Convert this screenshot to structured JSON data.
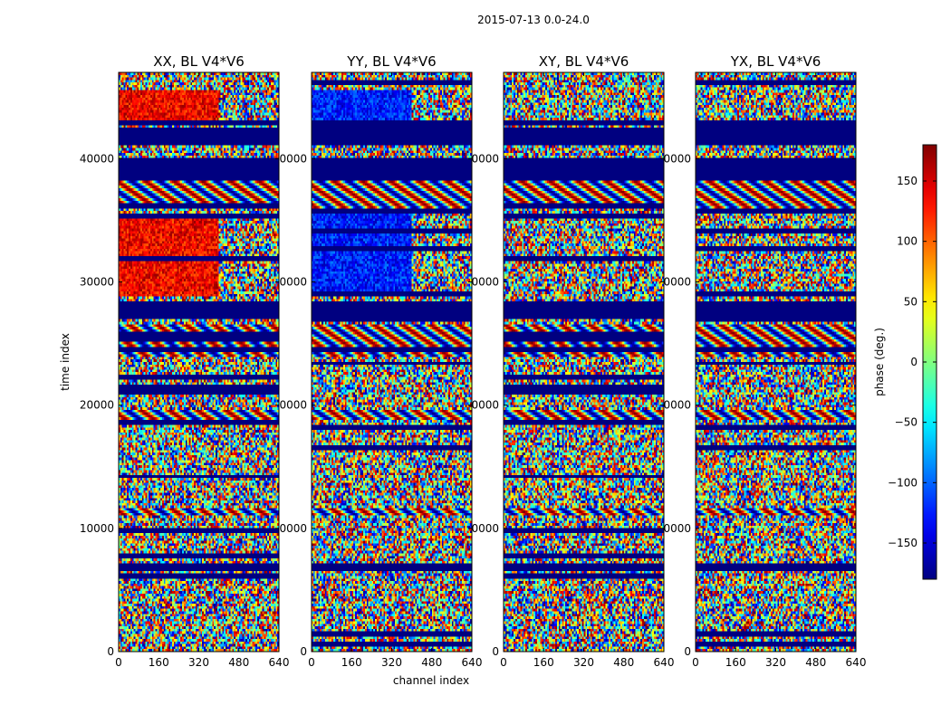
{
  "figure_title": "2015-07-13 0.0-24.0",
  "chart_data": {
    "type": "heatmap",
    "title": "2015-07-13 0.0-24.0",
    "xlabel": "channel index",
    "ylabel": "time index",
    "xlim": [
      0,
      640
    ],
    "ylim": [
      0,
      47000
    ],
    "x_ticks": [
      0,
      160,
      320,
      480,
      640
    ],
    "y_ticks": [
      0,
      10000,
      20000,
      30000,
      40000
    ],
    "x_tick_labels": [
      "0",
      "160",
      "320",
      "480",
      "640"
    ],
    "y_tick_labels": [
      "0",
      "10000",
      "20000",
      "30000",
      "40000"
    ],
    "y_tick_labels_clipped": [
      "0",
      "0000",
      "0000",
      "0000",
      "0000"
    ],
    "colorbar": {
      "label": "phase (deg.)",
      "range": [
        -180,
        180
      ],
      "ticks": [
        -150,
        -100,
        -50,
        0,
        50,
        100,
        150
      ],
      "tick_labels": [
        "−150",
        "−100",
        "−50",
        "0",
        "50",
        "100",
        "150"
      ],
      "colormap": "jet"
    },
    "panels": [
      {
        "name": "XX",
        "title": "XX, BL V4*V6",
        "hot_block": "red",
        "show_ylabel": true
      },
      {
        "name": "YY",
        "title": "YY, BL V4*V6",
        "hot_block": "blue",
        "show_ylabel": false
      },
      {
        "name": "XY",
        "title": "XY, BL V4*V6",
        "hot_block": "none",
        "show_ylabel": false
      },
      {
        "name": "YX",
        "title": "YX, BL V4*V6",
        "hot_block": "none",
        "show_ylabel": false
      }
    ],
    "flagged_time_ranges": [
      [
        6600,
        7200
      ],
      [
        27000,
        28500
      ],
      [
        38300,
        40000
      ],
      [
        41000,
        42500
      ]
    ],
    "structured_time_ranges": [
      [
        11000,
        11600
      ],
      [
        18800,
        19600
      ],
      [
        24000,
        26500
      ],
      [
        36000,
        39000
      ]
    ]
  }
}
